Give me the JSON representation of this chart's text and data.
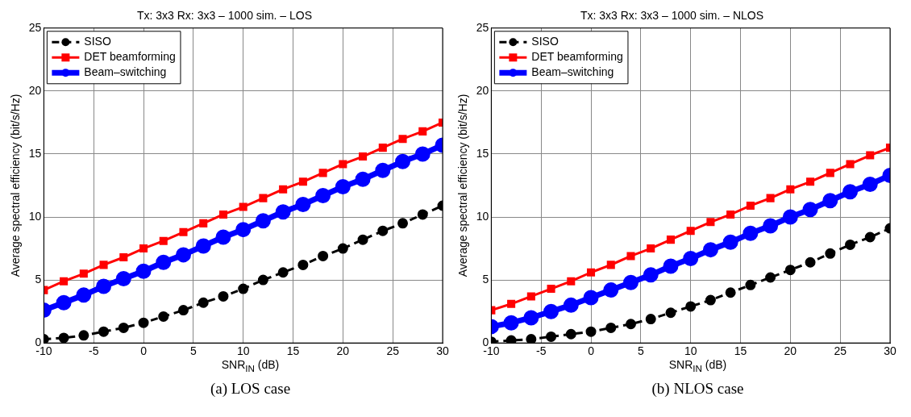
{
  "chart_data": [
    {
      "type": "line",
      "title": "Tx: 3x3 Rx: 3x3 – 1000 sim. – LOS",
      "xlabel": "SNR$_{IN}$ (dB)",
      "ylabel": "Average spectral efficiency (bit/s/Hz)",
      "annotations": [
        "(a) LOS case"
      ],
      "x": [
        -10,
        -8,
        -6,
        -4,
        -2,
        0,
        2,
        4,
        6,
        8,
        10,
        12,
        14,
        16,
        18,
        20,
        22,
        24,
        26,
        28,
        30
      ],
      "series": [
        {
          "name": "SISO",
          "color": "#000000",
          "marker": "circle",
          "line_style": "dashed",
          "values": [
            0.3,
            0.4,
            0.6,
            0.9,
            1.2,
            1.6,
            2.1,
            2.6,
            3.2,
            3.7,
            4.3,
            5.0,
            5.6,
            6.2,
            6.9,
            7.5,
            8.2,
            8.9,
            9.5,
            10.2,
            10.9
          ]
        },
        {
          "name": "DET beamforming",
          "color": "#ff0000",
          "marker": "square",
          "line_style": "solid",
          "values": [
            4.2,
            4.9,
            5.5,
            6.2,
            6.8,
            7.5,
            8.1,
            8.8,
            9.5,
            10.2,
            10.8,
            11.5,
            12.2,
            12.8,
            13.5,
            14.2,
            14.8,
            15.5,
            16.2,
            16.8,
            17.5
          ]
        },
        {
          "name": "Beam–switching",
          "color": "#0000ff",
          "marker": "circle",
          "line_style": "solid",
          "values": [
            2.6,
            3.2,
            3.8,
            4.5,
            5.1,
            5.7,
            6.4,
            7.0,
            7.7,
            8.4,
            9.0,
            9.7,
            10.4,
            11.0,
            11.7,
            12.4,
            13.0,
            13.7,
            14.4,
            15.0,
            15.7
          ]
        }
      ],
      "xlim": [
        -10,
        30
      ],
      "xticks": [
        -10,
        -5,
        0,
        5,
        10,
        15,
        20,
        25,
        30
      ],
      "ylim": [
        0,
        25
      ],
      "yticks": [
        0,
        5,
        10,
        15,
        20,
        25
      ],
      "grid": true,
      "legend": "top left"
    },
    {
      "type": "line",
      "title": "Tx: 3x3 Rx: 3x3 – 1000 sim. – NLOS",
      "xlabel": "SNR$_{IN}$ (dB)",
      "ylabel": "Average spectral efficiency (bit/s/Hz)",
      "annotations": [
        "(b) NLOS case"
      ],
      "x": [
        -10,
        -8,
        -6,
        -4,
        -2,
        0,
        2,
        4,
        6,
        8,
        10,
        12,
        14,
        16,
        18,
        20,
        22,
        24,
        26,
        28,
        30
      ],
      "series": [
        {
          "name": "SISO",
          "color": "#000000",
          "marker": "circle",
          "line_style": "dashed",
          "values": [
            0.1,
            0.2,
            0.3,
            0.5,
            0.7,
            0.9,
            1.2,
            1.5,
            1.9,
            2.4,
            2.9,
            3.4,
            4.0,
            4.6,
            5.2,
            5.8,
            6.4,
            7.1,
            7.8,
            8.4,
            9.1
          ]
        },
        {
          "name": "DET beamforming",
          "color": "#ff0000",
          "marker": "square",
          "line_style": "solid",
          "values": [
            2.6,
            3.1,
            3.7,
            4.3,
            4.9,
            5.6,
            6.2,
            6.9,
            7.5,
            8.2,
            8.9,
            9.6,
            10.2,
            10.9,
            11.5,
            12.2,
            12.8,
            13.5,
            14.2,
            14.9,
            15.5
          ]
        },
        {
          "name": "Beam–switching",
          "color": "#0000ff",
          "marker": "circle",
          "line_style": "solid",
          "values": [
            1.3,
            1.6,
            2.0,
            2.5,
            3.0,
            3.6,
            4.2,
            4.8,
            5.4,
            6.1,
            6.7,
            7.4,
            8.0,
            8.7,
            9.3,
            10.0,
            10.6,
            11.3,
            12.0,
            12.6,
            13.3
          ]
        }
      ],
      "xlim": [
        -10,
        30
      ],
      "xticks": [
        -10,
        -5,
        0,
        5,
        10,
        15,
        20,
        25,
        30
      ],
      "ylim": [
        0,
        25
      ],
      "yticks": [
        0,
        5,
        10,
        15,
        20,
        25
      ],
      "grid": true,
      "legend": "top left"
    }
  ]
}
